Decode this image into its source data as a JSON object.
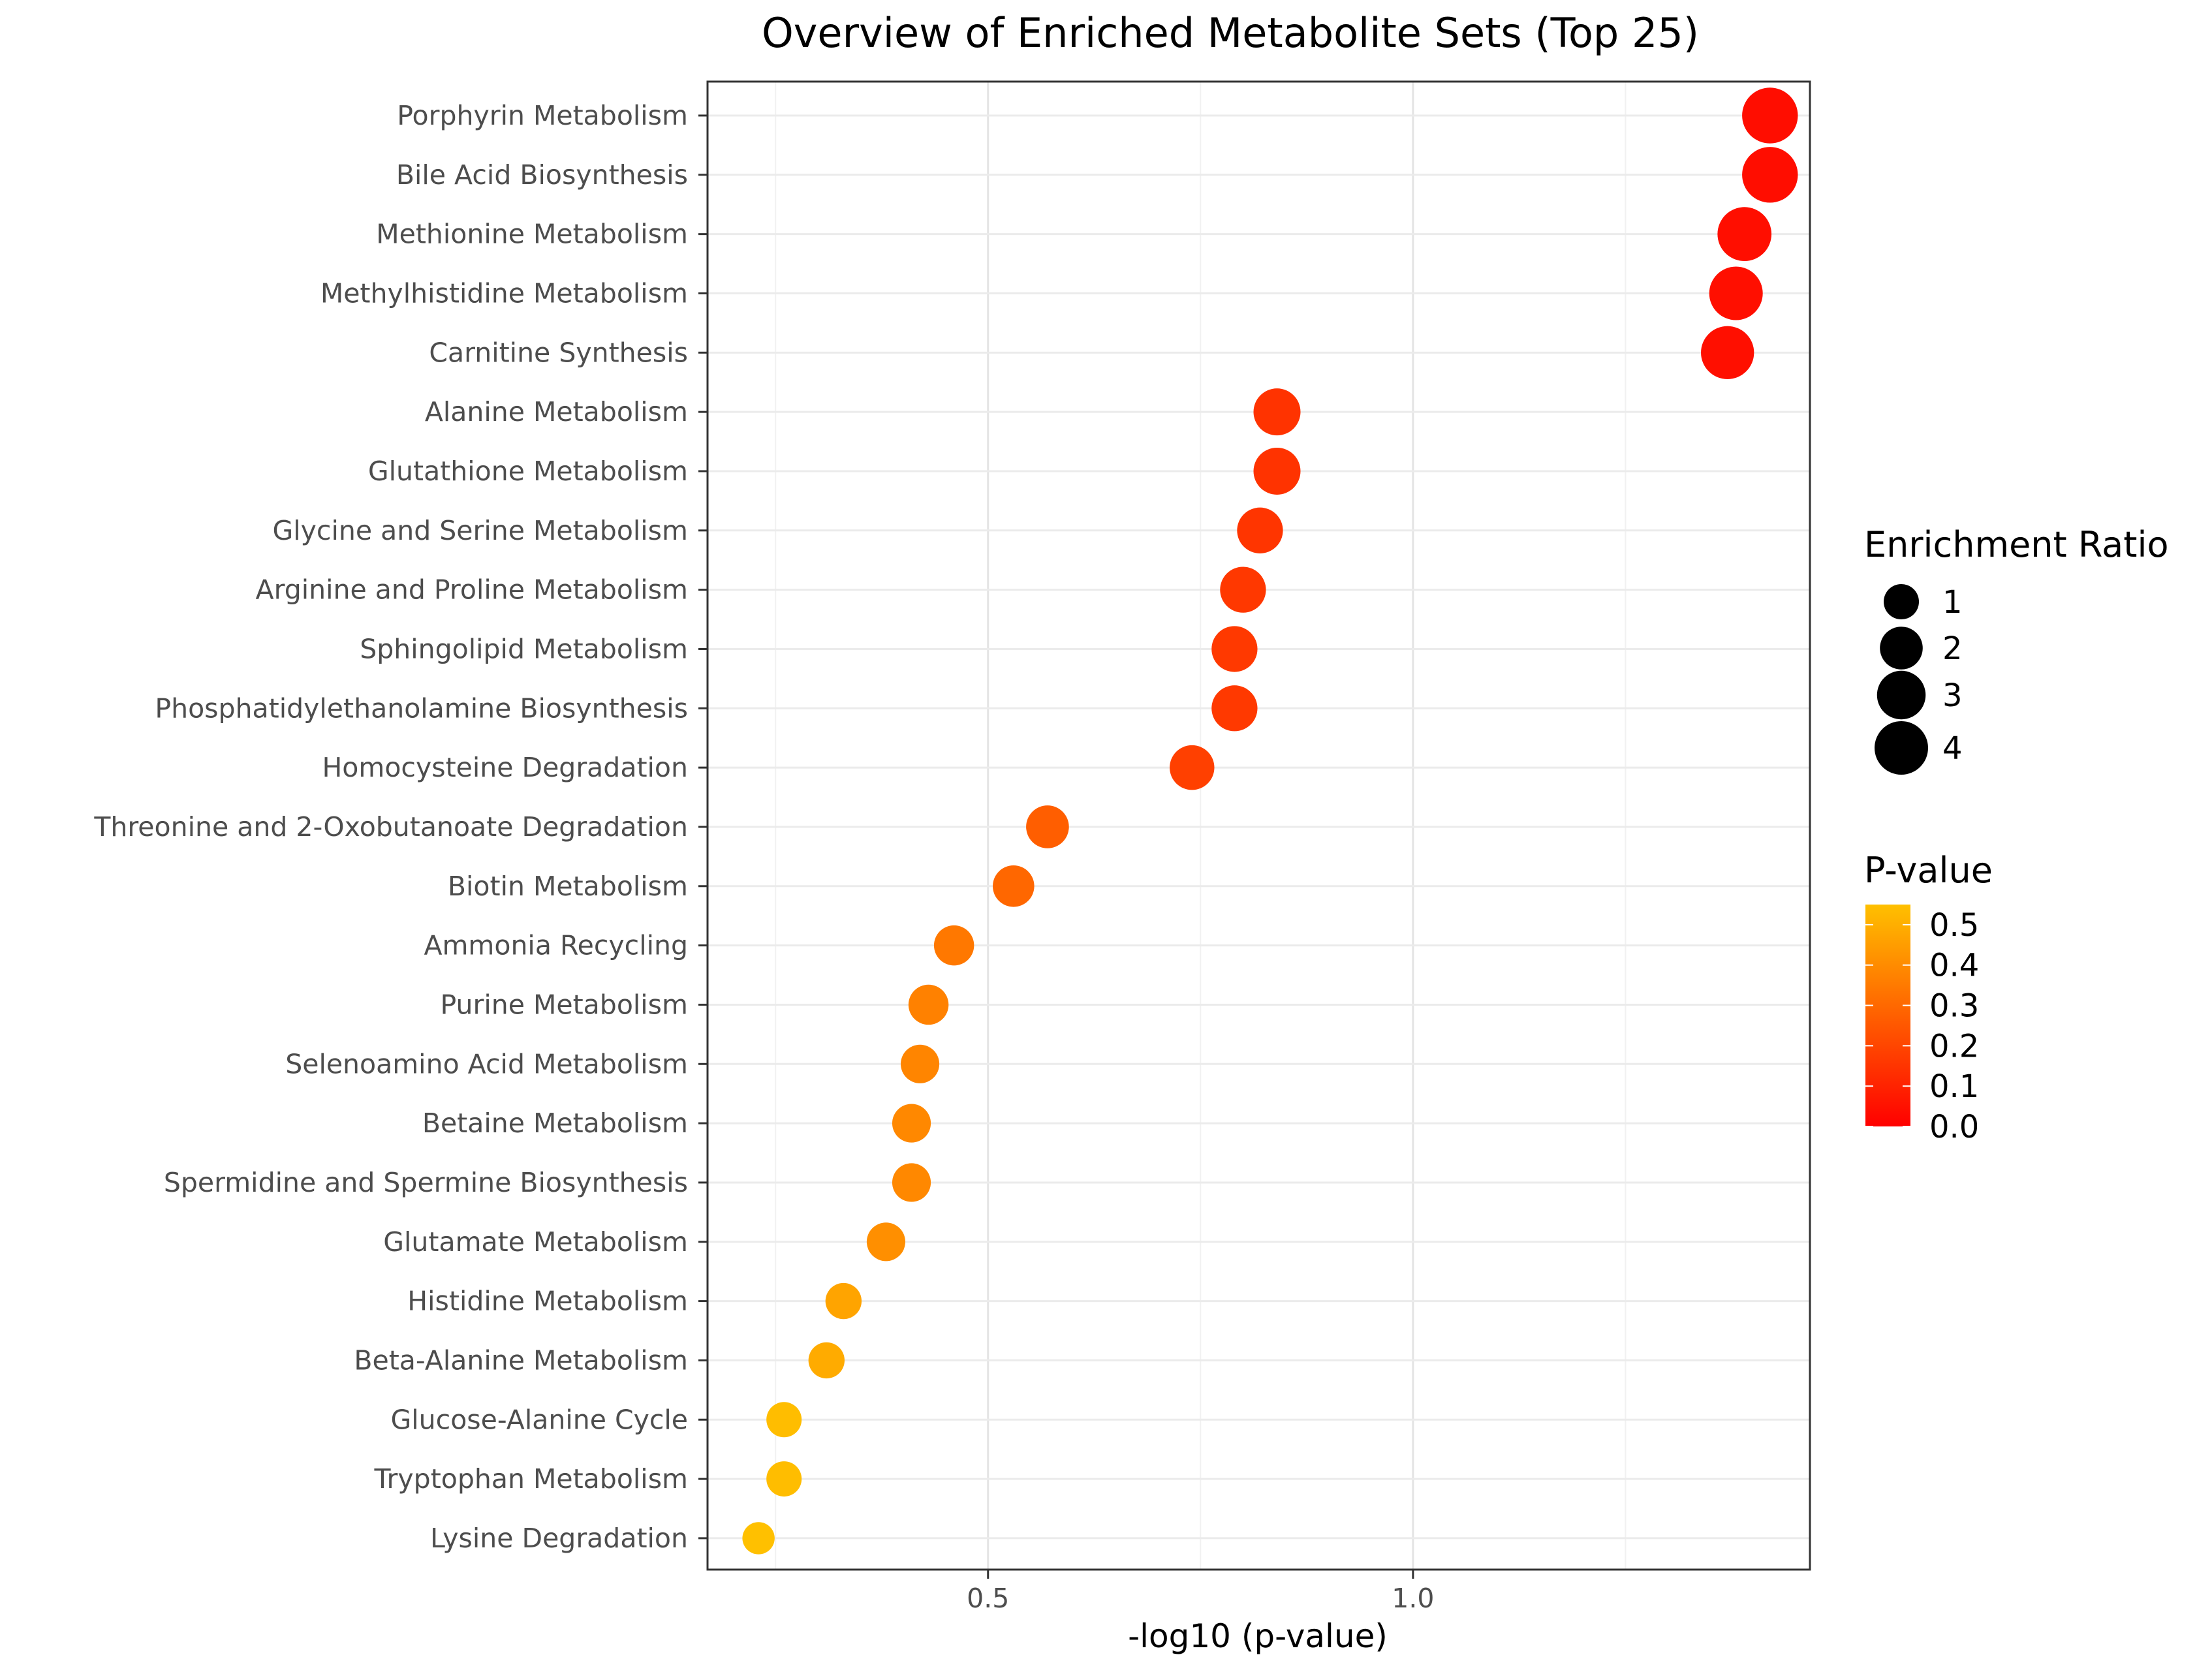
{
  "chart_data": {
    "type": "scatter",
    "title": "Overview of Enriched Metabolite Sets (Top 25)",
    "xlabel": "-log10 (p-value)",
    "ylabel": "",
    "xlim": [
      0.17,
      1.467
    ],
    "x_ticks": [
      {
        "value": 0.5,
        "label": "0.5"
      },
      {
        "value": 1.0,
        "label": "1.0"
      }
    ],
    "grid": true,
    "legend_position": "right",
    "size_legend": {
      "title": "Enrichment Ratio",
      "entries": [
        {
          "value": 1,
          "label": "1"
        },
        {
          "value": 2,
          "label": "2"
        },
        {
          "value": 3,
          "label": "3"
        },
        {
          "value": 4,
          "label": "4"
        }
      ]
    },
    "color_legend": {
      "title": "P-value",
      "low_color": "#ff0000",
      "high_color": "#ffc000",
      "range": [
        0.0,
        0.55
      ],
      "ticks": [
        "0.0",
        "0.1",
        "0.2",
        "0.3",
        "0.4",
        "0.5"
      ]
    },
    "points": [
      {
        "name": "Porphyrin Metabolism",
        "x": 1.42,
        "p": 0.038,
        "ratio": 4.5
      },
      {
        "name": "Bile Acid Biosynthesis",
        "x": 1.42,
        "p": 0.038,
        "ratio": 4.5
      },
      {
        "name": "Methionine Metabolism",
        "x": 1.39,
        "p": 0.041,
        "ratio": 4.1
      },
      {
        "name": "Methylhistidine Metabolism",
        "x": 1.38,
        "p": 0.042,
        "ratio": 4.0
      },
      {
        "name": "Carnitine Synthesis",
        "x": 1.37,
        "p": 0.043,
        "ratio": 3.9
      },
      {
        "name": "Alanine Metabolism",
        "x": 0.84,
        "p": 0.145,
        "ratio": 2.7
      },
      {
        "name": "Glutathione Metabolism",
        "x": 0.84,
        "p": 0.146,
        "ratio": 2.7
      },
      {
        "name": "Glycine and Serine Metabolism",
        "x": 0.82,
        "p": 0.152,
        "ratio": 2.5
      },
      {
        "name": "Arginine and Proline Metabolism",
        "x": 0.8,
        "p": 0.16,
        "ratio": 2.5
      },
      {
        "name": "Sphingolipid Metabolism",
        "x": 0.79,
        "p": 0.164,
        "ratio": 2.5
      },
      {
        "name": "Phosphatidylethanolamine Biosynthesis",
        "x": 0.79,
        "p": 0.164,
        "ratio": 2.5
      },
      {
        "name": "Homocysteine Degradation",
        "x": 0.74,
        "p": 0.183,
        "ratio": 2.3
      },
      {
        "name": "Threonine and 2-Oxobutanoate Degradation",
        "x": 0.57,
        "p": 0.27,
        "ratio": 2.0
      },
      {
        "name": "Biotin Metabolism",
        "x": 0.53,
        "p": 0.295,
        "ratio": 1.8
      },
      {
        "name": "Ammonia Recycling",
        "x": 0.46,
        "p": 0.345,
        "ratio": 1.6
      },
      {
        "name": "Purine Metabolism",
        "x": 0.43,
        "p": 0.37,
        "ratio": 1.6
      },
      {
        "name": "Selenoamino Acid Metabolism",
        "x": 0.42,
        "p": 0.38,
        "ratio": 1.4
      },
      {
        "name": "Betaine Metabolism",
        "x": 0.41,
        "p": 0.39,
        "ratio": 1.4
      },
      {
        "name": "Spermidine and Spermine Biosynthesis",
        "x": 0.41,
        "p": 0.39,
        "ratio": 1.4
      },
      {
        "name": "Glutamate Metabolism",
        "x": 0.38,
        "p": 0.41,
        "ratio": 1.4
      },
      {
        "name": "Histidine Metabolism",
        "x": 0.33,
        "p": 0.47,
        "ratio": 1.1
      },
      {
        "name": "Beta-Alanine Metabolism",
        "x": 0.31,
        "p": 0.49,
        "ratio": 1.1
      },
      {
        "name": "Glucose-Alanine Cycle",
        "x": 0.26,
        "p": 0.54,
        "ratio": 1.0
      },
      {
        "name": "Tryptophan Metabolism",
        "x": 0.26,
        "p": 0.54,
        "ratio": 1.0
      },
      {
        "name": "Lysine Degradation",
        "x": 0.23,
        "p": 0.58,
        "ratio": 0.7
      }
    ]
  }
}
